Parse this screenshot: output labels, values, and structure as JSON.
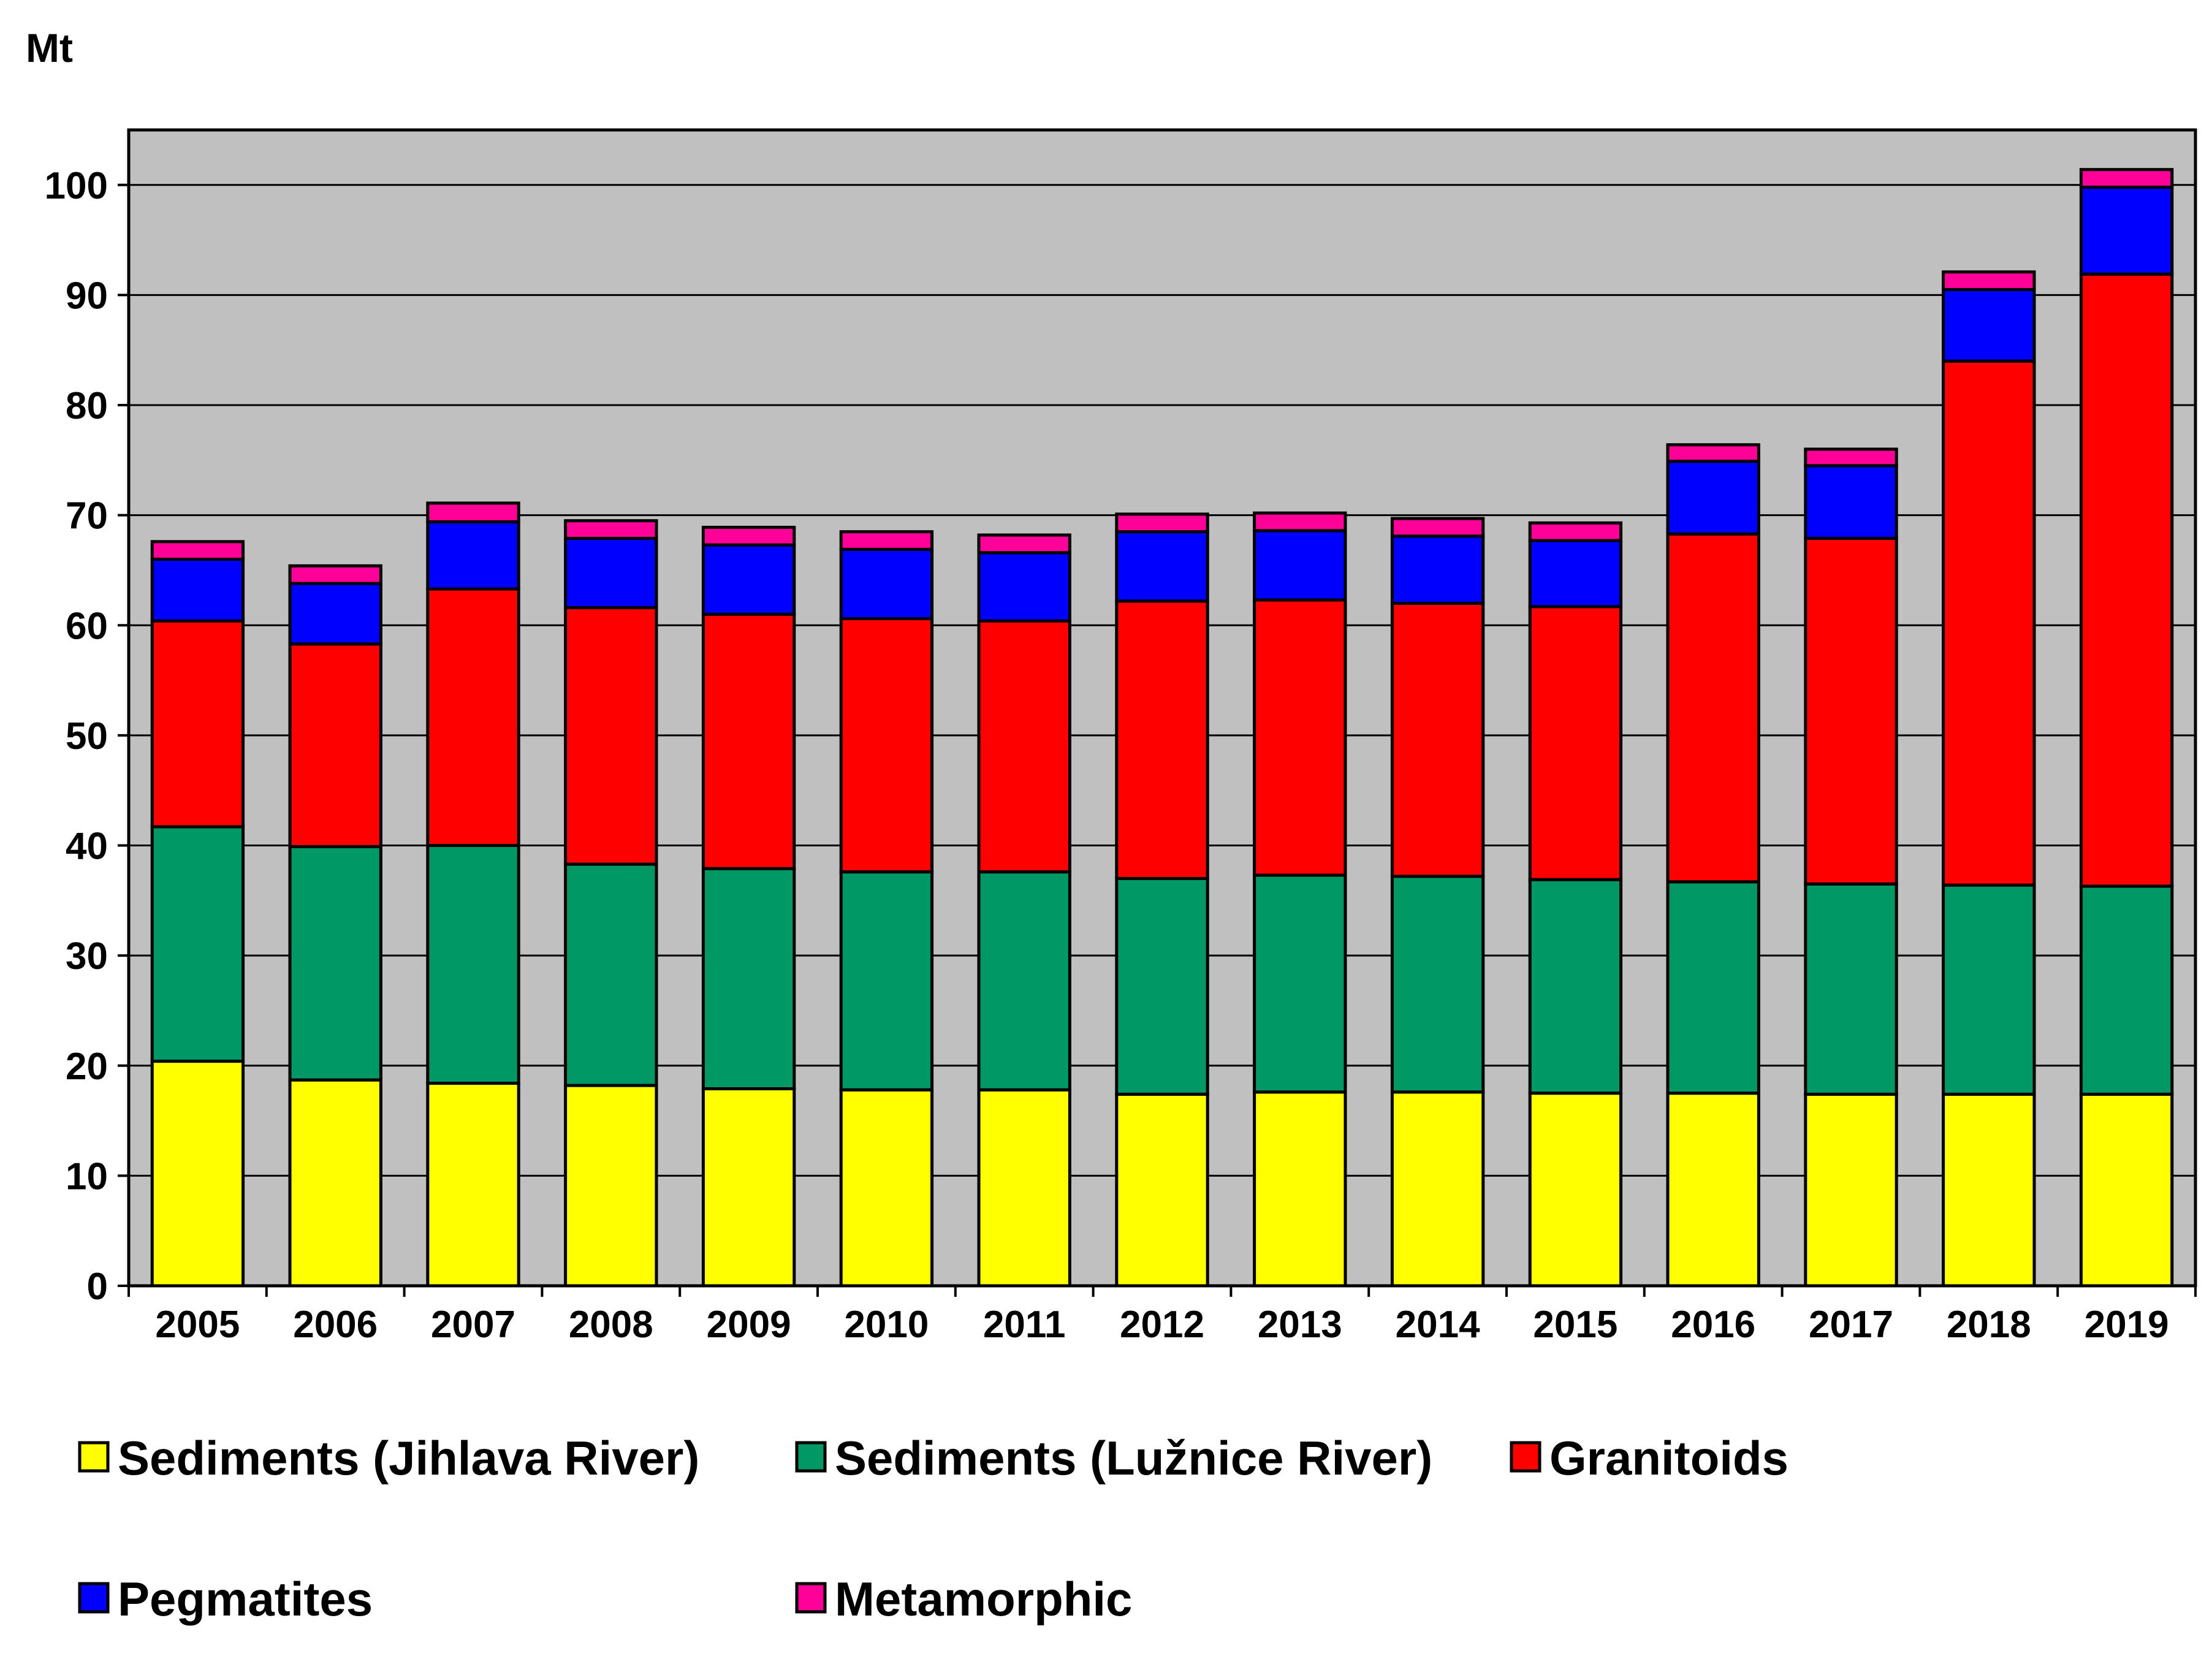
{
  "chart_data": {
    "type": "bar",
    "stacked": true,
    "unit_label": "Mt",
    "categories": [
      "2005",
      "2006",
      "2007",
      "2008",
      "2009",
      "2010",
      "2011",
      "2012",
      "2013",
      "2014",
      "2015",
      "2016",
      "2017",
      "2018",
      "2019"
    ],
    "ylim": [
      0,
      105
    ],
    "yticks": [
      0,
      10,
      20,
      30,
      40,
      50,
      60,
      70,
      80,
      90,
      100
    ],
    "ytick_labels": [
      "0",
      "10",
      "20",
      "30",
      "40",
      "50",
      "60",
      "70",
      "80",
      "90",
      "100"
    ],
    "grid": true,
    "plot_background": "#C0C0C0",
    "legend_position": "bottom",
    "series": [
      {
        "name": "Sediments (Jihlava River)",
        "color": "#FFFF00",
        "values": [
          20.4,
          18.7,
          18.4,
          18.2,
          17.9,
          17.8,
          17.8,
          17.4,
          17.6,
          17.6,
          17.5,
          17.5,
          17.4,
          17.4,
          17.4
        ]
      },
      {
        "name": "Sediments (Lužnice River)",
        "color": "#009966",
        "values": [
          21.3,
          21.2,
          21.6,
          20.1,
          20.0,
          19.8,
          19.8,
          19.6,
          19.7,
          19.6,
          19.4,
          19.2,
          19.1,
          19.0,
          18.9
        ]
      },
      {
        "name": "Granitoids",
        "color": "#FF0000",
        "values": [
          18.7,
          18.4,
          23.3,
          23.3,
          23.1,
          23.0,
          22.8,
          25.2,
          25.0,
          24.8,
          24.8,
          31.6,
          31.4,
          47.6,
          55.6
        ]
      },
      {
        "name": "Pegmatites",
        "color": "#0000FF",
        "values": [
          5.6,
          5.5,
          6.1,
          6.3,
          6.3,
          6.3,
          6.2,
          6.3,
          6.3,
          6.1,
          6.0,
          6.6,
          6.6,
          6.5,
          7.9
        ]
      },
      {
        "name": "Metamorphic",
        "color": "#FF0099",
        "values": [
          1.6,
          1.6,
          1.7,
          1.6,
          1.6,
          1.6,
          1.6,
          1.6,
          1.6,
          1.6,
          1.6,
          1.5,
          1.5,
          1.6,
          1.6
        ]
      }
    ]
  }
}
